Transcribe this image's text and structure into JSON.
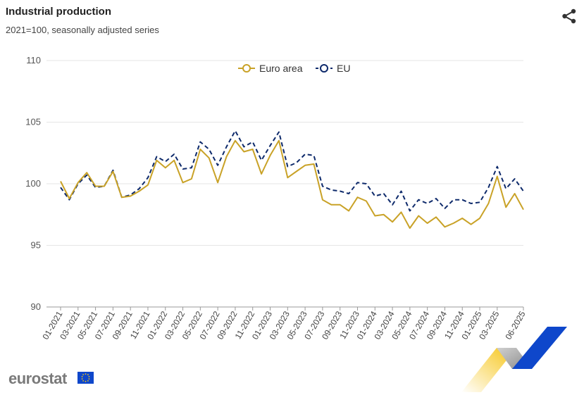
{
  "header": {
    "title": "Industrial production",
    "subtitle": "2021=100, seasonally adjusted series"
  },
  "share_icon": "share-icon",
  "logo": {
    "text": "eurostat"
  },
  "colors": {
    "euro_area": "#C9A227",
    "eu": "#0E2A6B",
    "grid": "#e6e6e6",
    "logo_yellow": "#F6C414",
    "logo_blue": "#0E47CB",
    "logo_grey": "#9A9A9A"
  },
  "chart_data": {
    "type": "line",
    "title": "Industrial production",
    "subtitle": "2021=100, seasonally adjusted series",
    "ylim": [
      90,
      110
    ],
    "yticks": [
      90,
      95,
      100,
      105,
      110
    ],
    "grid": true,
    "legend_position": "top-center",
    "categories": [
      "01-2021",
      "02-2021",
      "03-2021",
      "04-2021",
      "05-2021",
      "06-2021",
      "07-2021",
      "08-2021",
      "09-2021",
      "10-2021",
      "11-2021",
      "12-2021",
      "01-2022",
      "02-2022",
      "03-2022",
      "04-2022",
      "05-2022",
      "06-2022",
      "07-2022",
      "08-2022",
      "09-2022",
      "10-2022",
      "11-2022",
      "12-2022",
      "01-2023",
      "02-2023",
      "03-2023",
      "04-2023",
      "05-2023",
      "06-2023",
      "07-2023",
      "08-2023",
      "09-2023",
      "10-2023",
      "11-2023",
      "12-2023",
      "01-2024",
      "02-2024",
      "03-2024",
      "04-2024",
      "05-2024",
      "06-2024",
      "07-2024",
      "08-2024",
      "09-2024",
      "10-2024",
      "11-2024",
      "12-2024",
      "01-2025",
      "02-2025",
      "03-2025",
      "04-2025",
      "05-2025",
      "06-2025"
    ],
    "xtick_labels": [
      "01-2021",
      "03-2021",
      "05-2021",
      "07-2021",
      "09-2021",
      "11-2021",
      "01-2022",
      "03-2022",
      "05-2022",
      "07-2022",
      "09-2022",
      "11-2022",
      "01-2023",
      "03-2023",
      "05-2023",
      "07-2023",
      "09-2023",
      "11-2023",
      "01-2024",
      "03-2024",
      "05-2024",
      "07-2024",
      "09-2024",
      "11-2024",
      "01-2025",
      "03-2025",
      "06-2025"
    ],
    "series": [
      {
        "name": "Euro area",
        "style": "solid",
        "values": [
          100.2,
          98.8,
          100.1,
          100.9,
          99.8,
          99.8,
          101.0,
          98.9,
          99.0,
          99.4,
          99.9,
          101.9,
          101.3,
          101.9,
          100.1,
          100.4,
          102.8,
          102.1,
          100.1,
          102.2,
          103.5,
          102.6,
          102.8,
          100.8,
          102.3,
          103.5,
          100.5,
          101.0,
          101.5,
          101.6,
          98.7,
          98.3,
          98.3,
          97.8,
          98.9,
          98.6,
          97.4,
          97.5,
          96.9,
          97.7,
          96.4,
          97.4,
          96.8,
          97.3,
          96.5,
          96.8,
          97.2,
          96.7,
          97.2,
          98.4,
          100.6,
          98.1,
          99.2,
          97.9
        ]
      },
      {
        "name": "EU",
        "style": "dashed",
        "values": [
          99.7,
          98.7,
          100.0,
          100.7,
          99.7,
          99.8,
          101.1,
          98.9,
          99.1,
          99.6,
          100.5,
          102.2,
          101.8,
          102.4,
          101.2,
          101.3,
          103.4,
          102.8,
          101.5,
          103.0,
          104.3,
          103.0,
          103.4,
          101.9,
          103.1,
          104.2,
          101.4,
          101.7,
          102.4,
          102.3,
          99.8,
          99.5,
          99.4,
          99.2,
          100.1,
          100.0,
          99.0,
          99.2,
          98.3,
          99.4,
          97.8,
          98.7,
          98.4,
          98.8,
          98.0,
          98.7,
          98.7,
          98.4,
          98.5,
          99.7,
          101.4,
          99.6,
          100.4,
          99.4
        ]
      }
    ]
  }
}
